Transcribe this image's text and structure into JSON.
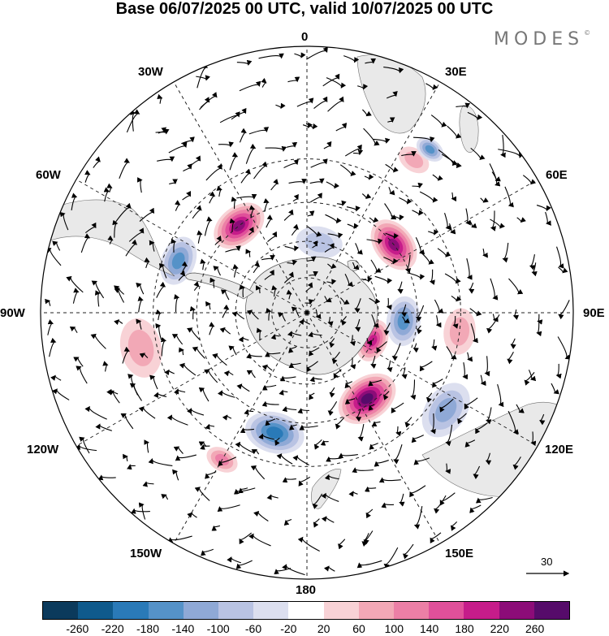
{
  "title": "Base 06/07/2025 00 UTC, valid 10/07/2025 00 UTC",
  "brand": "MODES",
  "brand_mark": "©",
  "meridian_labels": {
    "m0": "0",
    "m30e": "30E",
    "m60e": "60E",
    "m90e": "90E",
    "m120e": "120E",
    "m150e": "150E",
    "m180": "180",
    "m150w": "150W",
    "m120w": "120W",
    "m90w": "90W",
    "m60w": "60W",
    "m30w": "30W"
  },
  "reference_vector": {
    "label": "30"
  },
  "colorbar": {
    "ticks": [
      "-260",
      "-220",
      "-180",
      "-140",
      "-100",
      "-60",
      "-20",
      "20",
      "60",
      "100",
      "140",
      "180",
      "220",
      "260"
    ],
    "colors": [
      "#0b3a5c",
      "#0f5a8c",
      "#2a7ab8",
      "#5592c8",
      "#8fa9d6",
      "#b9c3e3",
      "#dcdfef",
      "#ffffff",
      "#f8d2d6",
      "#f2a8b6",
      "#ec7fa6",
      "#e0509a",
      "#c61c8a",
      "#8c0c78",
      "#560b6a"
    ]
  },
  "anomaly_blobs": [
    {
      "lon": 52,
      "lat": -45,
      "r": 0.085,
      "level": 6
    },
    {
      "lon": -38,
      "lat": -45,
      "r": 0.085,
      "level": 6
    },
    {
      "lon": 113,
      "lat": -60,
      "r": 0.065,
      "level": 5
    },
    {
      "lon": 145,
      "lat": -47,
      "r": 0.095,
      "level": 7
    },
    {
      "lon": 97,
      "lat": -30,
      "r": 0.07,
      "level": 2
    },
    {
      "lon": -102,
      "lat": -25,
      "r": 0.09,
      "level": 2
    },
    {
      "lon": -150,
      "lat": -25,
      "r": 0.05,
      "level": 3
    },
    {
      "lon": 35,
      "lat": -20,
      "r": 0.05,
      "level": 2
    },
    {
      "lon": 10,
      "lat": -60,
      "r": 0.07,
      "level": -2
    },
    {
      "lon": 95,
      "lat": -50,
      "r": 0.075,
      "level": -4
    },
    {
      "lon": -165,
      "lat": -40,
      "r": 0.09,
      "level": -5
    },
    {
      "lon": -68,
      "lat": -35,
      "r": 0.075,
      "level": -4
    },
    {
      "lon": 37,
      "lat": -15,
      "r": 0.045,
      "level": -4
    },
    {
      "lon": 125,
      "lat": -25,
      "r": 0.09,
      "level": -3
    },
    {
      "lon": -45,
      "lat": -75,
      "r": 0.05,
      "level": 1
    },
    {
      "lon": -140,
      "lat": -75,
      "r": 0.05,
      "level": 1
    },
    {
      "lon": 165,
      "lat": -80,
      "r": 0.04,
      "level": -1
    }
  ]
}
